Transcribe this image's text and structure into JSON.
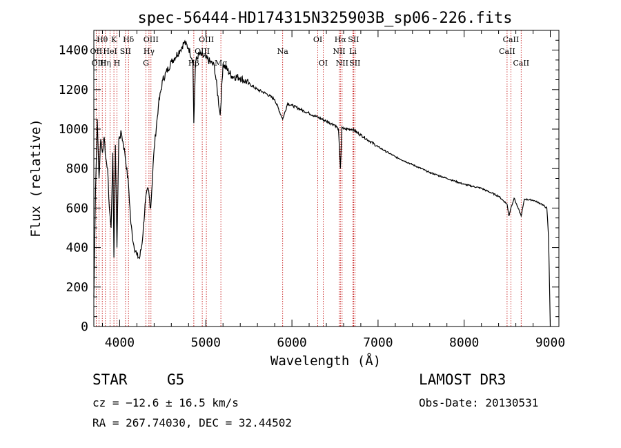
{
  "chart_data": {
    "type": "line",
    "title": "spec-56444-HD174315N325903B_sp06-226.fits",
    "xlabel": "Wavelength (Å)",
    "ylabel": "Flux (relative)",
    "xlim": [
      3700,
      9100
    ],
    "ylim": [
      0,
      1500
    ],
    "xticks": [
      4000,
      5000,
      6000,
      7000,
      8000,
      9000
    ],
    "yticks": [
      0,
      200,
      400,
      600,
      800,
      1000,
      1200,
      1400
    ],
    "series": [
      {
        "name": "spectrum",
        "x": [
          3700,
          3720,
          3740,
          3760,
          3780,
          3800,
          3820,
          3840,
          3860,
          3880,
          3900,
          3920,
          3933,
          3950,
          3968,
          3990,
          4020,
          4060,
          4102,
          4130,
          4160,
          4200,
          4230,
          4260,
          4300,
          4330,
          4360,
          4400,
          4450,
          4500,
          4600,
          4700,
          4750,
          4800,
          4850,
          4861,
          4880,
          4920,
          5000,
          5100,
          5167,
          5200,
          5300,
          5400,
          5500,
          5600,
          5700,
          5800,
          5893,
          5950,
          6000,
          6100,
          6200,
          6300,
          6400,
          6500,
          6540,
          6563,
          6580,
          6600,
          6700,
          6800,
          6900,
          7000,
          7200,
          7400,
          7600,
          7800,
          8000,
          8200,
          8400,
          8498,
          8520,
          8542,
          8580,
          8662,
          8700,
          8800,
          8900,
          8960,
          8980,
          9000
        ],
        "values": [
          150,
          700,
          1050,
          750,
          950,
          880,
          960,
          850,
          800,
          600,
          500,
          880,
          350,
          920,
          400,
          950,
          980,
          880,
          720,
          520,
          420,
          360,
          345,
          420,
          640,
          700,
          600,
          900,
          1120,
          1250,
          1340,
          1400,
          1440,
          1410,
          1350,
          1030,
          1340,
          1380,
          1360,
          1320,
          1070,
          1330,
          1270,
          1260,
          1230,
          1200,
          1180,
          1150,
          1050,
          1130,
          1120,
          1100,
          1080,
          1060,
          1040,
          1020,
          1000,
          800,
          1010,
          1000,
          1000,
          970,
          940,
          910,
          860,
          820,
          780,
          750,
          720,
          700,
          660,
          620,
          560,
          600,
          650,
          560,
          645,
          640,
          620,
          600,
          450,
          0
        ]
      }
    ],
    "lines": [
      {
        "label": "Hθ",
        "x": 3798,
        "row": 1
      },
      {
        "label": "OII",
        "x": 3727,
        "row": 2
      },
      {
        "label": "OIII",
        "x": 3760,
        "row": 3
      },
      {
        "label": "K",
        "x": 3933,
        "row": 1
      },
      {
        "label": "HeI",
        "x": 3889,
        "row": 2
      },
      {
        "label": "Hη",
        "x": 3835,
        "row": 3
      },
      {
        "label": "Hδ",
        "x": 4102,
        "row": 1
      },
      {
        "label": "SII",
        "x": 4068,
        "row": 2
      },
      {
        "label": "H",
        "x": 3968,
        "row": 3
      },
      {
        "label": "OIII",
        "x": 4363,
        "row": 1
      },
      {
        "label": "Hγ",
        "x": 4340,
        "row": 2
      },
      {
        "label": "G",
        "x": 4305,
        "row": 3
      },
      {
        "label": "OIII",
        "x": 5007,
        "row": 1
      },
      {
        "label": "OIII",
        "x": 4959,
        "row": 2
      },
      {
        "label": "Hβ",
        "x": 4861,
        "row": 3
      },
      {
        "label": "Mg",
        "x": 5175,
        "row": 3
      },
      {
        "label": "Na",
        "x": 5893,
        "row": 2
      },
      {
        "label": "OI",
        "x": 6300,
        "row": 1
      },
      {
        "label": "OI",
        "x": 6363,
        "row": 3
      },
      {
        "label": "Hα",
        "x": 6563,
        "row": 1
      },
      {
        "label": "SII",
        "x": 6716,
        "row": 1
      },
      {
        "label": "NII",
        "x": 6548,
        "row": 2
      },
      {
        "label": "Li",
        "x": 6708,
        "row": 2
      },
      {
        "label": "NII",
        "x": 6583,
        "row": 3
      },
      {
        "label": "SII",
        "x": 6731,
        "row": 3
      },
      {
        "label": "CaII",
        "x": 8542,
        "row": 1
      },
      {
        "label": "CaII",
        "x": 8498,
        "row": 2
      },
      {
        "label": "CaII",
        "x": 8662,
        "row": 3
      }
    ]
  },
  "info": {
    "object_class": "STAR",
    "subclass": "G5",
    "survey": "LAMOST DR3",
    "redshift": "cz = −12.6 ± 16.5 km/s",
    "obs_date": "Obs-Date: 20130531",
    "coords": "RA = 267.74030, DEC =  32.44502"
  }
}
